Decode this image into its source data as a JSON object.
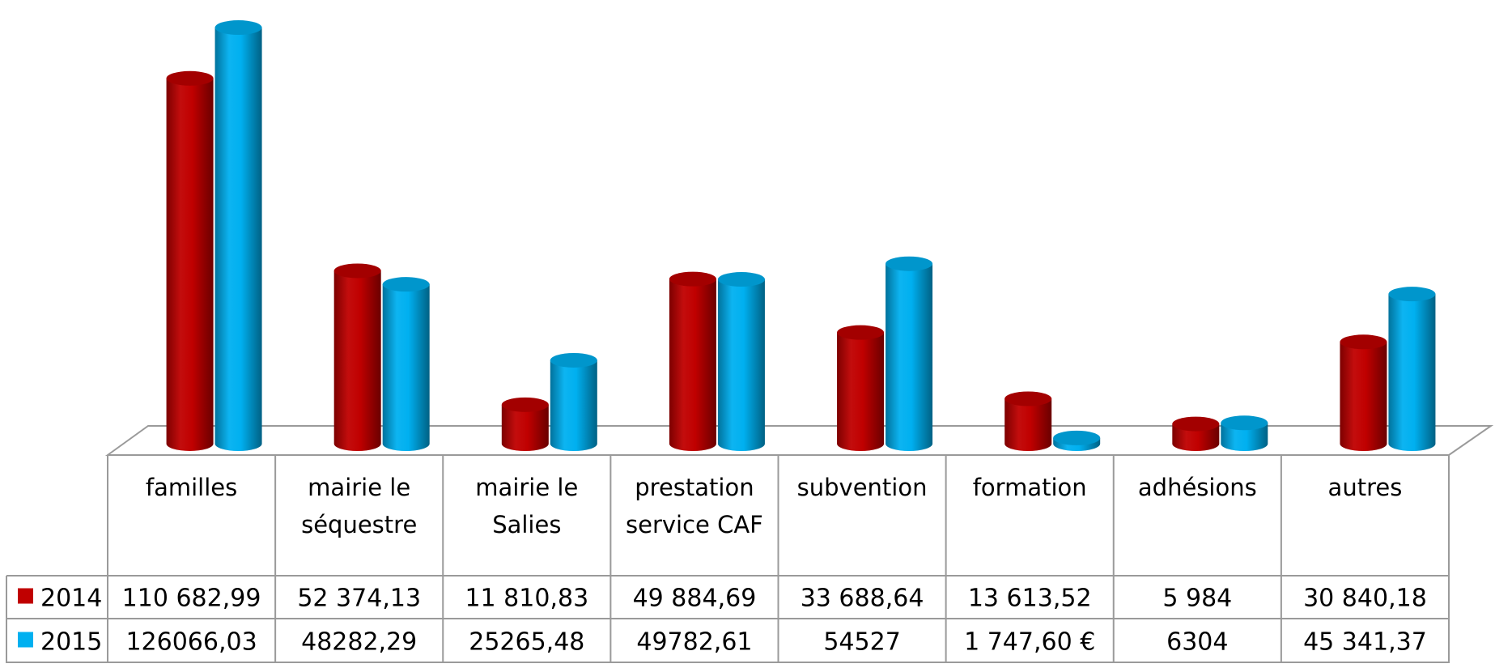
{
  "chart_data": {
    "type": "bar",
    "style": "3d-cylinder",
    "title": "",
    "xlabel": "",
    "ylabel": "",
    "grid": false,
    "legend": "in data table, left",
    "ylim": [
      0,
      130000
    ],
    "categories": [
      "familles",
      "mairie le séquestre",
      "mairie le Salies",
      "prestation service CAF",
      "subvention",
      "formation",
      "adhésions",
      "autres"
    ],
    "series": [
      {
        "name": "2014",
        "color": "#c00000",
        "values": [
          110682.99,
          52374.13,
          11810.83,
          49884.69,
          33688.64,
          13613.52,
          5984,
          30840.18
        ],
        "labels": [
          "110 682,99",
          "52 374,13",
          "11 810,83",
          "49 884,69",
          "33 688,64",
          "13 613,52",
          "5 984",
          "30 840,18"
        ]
      },
      {
        "name": "2015",
        "color": "#00b0f0",
        "values": [
          126066.03,
          48282.29,
          25265.48,
          49782.61,
          54527,
          1747.6,
          6304,
          45341.37
        ],
        "labels": [
          "126066,03",
          "48282,29",
          "25265,48",
          "49782,61",
          "54527",
          "1 747,60 €",
          "6304",
          "45 341,37"
        ]
      }
    ]
  }
}
